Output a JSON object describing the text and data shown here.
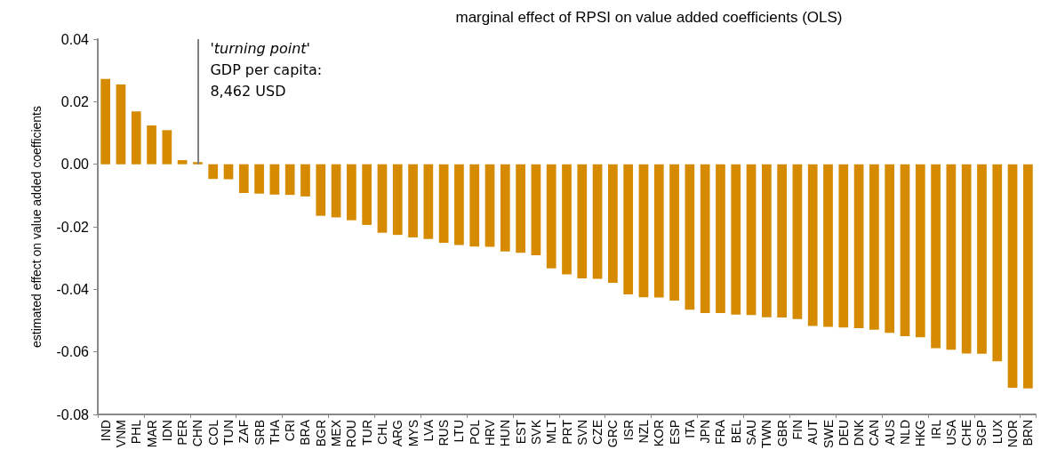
{
  "chart_data": {
    "type": "bar",
    "title": "marginal effect of RPSI on value added coefficients (OLS)",
    "ylabel": "estimated effect on value added coefficients",
    "categories": [
      "IND",
      "VNM",
      "PHL",
      "MAR",
      "IDN",
      "PER",
      "CHN",
      "COL",
      "TUN",
      "ZAF",
      "SRB",
      "THA",
      "CRI",
      "BRA",
      "BGR",
      "MEX",
      "ROU",
      "TUR",
      "CHL",
      "ARG",
      "MYS",
      "LVA",
      "RUS",
      "LTU",
      "POL",
      "HRV",
      "HUN",
      "EST",
      "SVK",
      "MLT",
      "PRT",
      "SVN",
      "CZE",
      "GRC",
      "ISR",
      "NZL",
      "KOR",
      "ESP",
      "ITA",
      "JPN",
      "FRA",
      "BEL",
      "SAU",
      "TWN",
      "GBR",
      "FIN",
      "AUT",
      "SWE",
      "DEU",
      "DNK",
      "CAN",
      "AUS",
      "NLD",
      "HKG",
      "IRL",
      "USA",
      "CHE",
      "SGP",
      "LUX",
      "NOR",
      "BRN"
    ],
    "values": [
      0.0273,
      0.0255,
      0.0169,
      0.0124,
      0.0109,
      0.0013,
      0.0007,
      -0.0047,
      -0.0048,
      -0.0092,
      -0.0094,
      -0.0097,
      -0.0098,
      -0.0103,
      -0.0165,
      -0.017,
      -0.0179,
      -0.0194,
      -0.0219,
      -0.0226,
      -0.0234,
      -0.0239,
      -0.0251,
      -0.0258,
      -0.0263,
      -0.0264,
      -0.0279,
      -0.0283,
      -0.0291,
      -0.0333,
      -0.0352,
      -0.0365,
      -0.0366,
      -0.0379,
      -0.0416,
      -0.0425,
      -0.0426,
      -0.0436,
      -0.0465,
      -0.0476,
      -0.0476,
      -0.0481,
      -0.0482,
      -0.0489,
      -0.049,
      -0.0495,
      -0.0517,
      -0.052,
      -0.0522,
      -0.0524,
      -0.0529,
      -0.0539,
      -0.055,
      -0.0553,
      -0.0588,
      -0.0593,
      -0.0605,
      -0.0606,
      -0.063,
      -0.0715,
      -0.0717
    ],
    "color": "#d68a00",
    "ylim": [
      -0.08,
      0.04
    ],
    "yticks": [
      -0.08,
      -0.06,
      -0.04,
      -0.02,
      {
        "value": 0,
        "label": "0.00"
      },
      0.02,
      0.04
    ],
    "grid": false,
    "ref_lines": [
      {
        "axis": "x",
        "value": "CHN",
        "label": "'turning point'",
        "color": "#808080"
      }
    ],
    "annotations": [
      "GDP per capita:",
      "8,462 USD"
    ]
  }
}
